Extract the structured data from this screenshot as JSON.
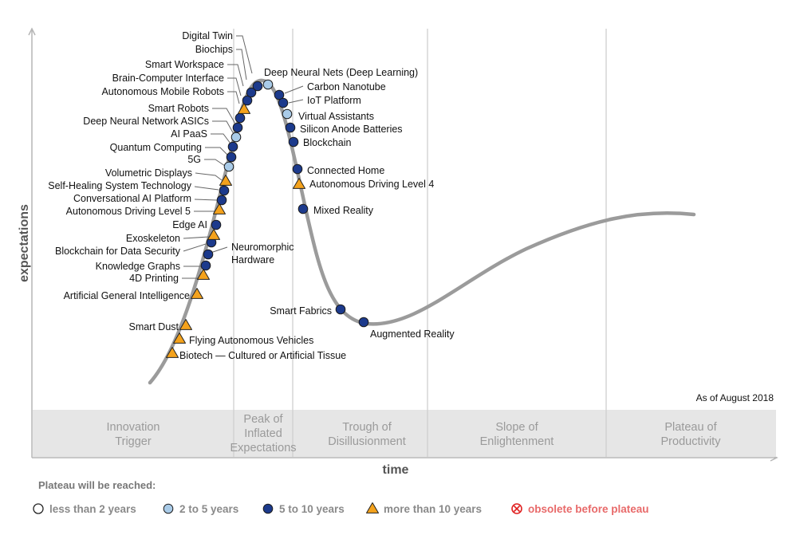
{
  "chart_data": {
    "type": "scatter",
    "subtype": "hype-cycle",
    "xlabel": "time",
    "ylabel": "expectations",
    "as_of": "As of August 2018",
    "phases": [
      {
        "name": "Innovation Trigger",
        "lines": [
          "Innovation",
          "Trigger"
        ]
      },
      {
        "name": "Peak of Inflated Expectations",
        "lines": [
          "Peak of",
          "Inflated",
          "Expectations"
        ]
      },
      {
        "name": "Trough of Disillusionment",
        "lines": [
          "Trough of",
          "Disillusionment"
        ]
      },
      {
        "name": "Slope of Enlightenment",
        "lines": [
          "Slope of",
          "Enlightenment"
        ]
      },
      {
        "name": "Plateau of Productivity",
        "lines": [
          "Plateau of",
          "Productivity"
        ]
      }
    ],
    "legend": {
      "title": "Plateau will be reached:",
      "items": [
        {
          "key": "lt2",
          "label": "less than 2 years",
          "marker": "open-circle"
        },
        {
          "key": "2to5",
          "label": "2 to 5 years",
          "marker": "light-blue-circle"
        },
        {
          "key": "5to10",
          "label": "5 to 10 years",
          "marker": "dark-blue-circle"
        },
        {
          "key": "gt10",
          "label": "more than 10 years",
          "marker": "orange-triangle"
        },
        {
          "key": "obsolete",
          "label": "obsolete before plateau",
          "marker": "red-crossed-circle"
        }
      ]
    },
    "colors": {
      "curve": "#9b9b9b",
      "phase_band": "#e6e6e6",
      "lt2": "#ffffff",
      "2to5": "#a9cbe8",
      "5to10": "#1c3a8c",
      "gt10": "#f4a21c",
      "obsolete": "#e02020"
    },
    "points": [
      {
        "name": "Biotech — Cultured or Artificial Tissue",
        "phase": "Innovation Trigger",
        "category": "gt10"
      },
      {
        "name": "Flying Autonomous Vehicles",
        "phase": "Innovation Trigger",
        "category": "gt10"
      },
      {
        "name": "Smart Dust",
        "phase": "Innovation Trigger",
        "category": "gt10"
      },
      {
        "name": "Artificial General Intelligence",
        "phase": "Innovation Trigger",
        "category": "gt10"
      },
      {
        "name": "4D Printing",
        "phase": "Innovation Trigger",
        "category": "gt10"
      },
      {
        "name": "Knowledge Graphs",
        "phase": "Innovation Trigger",
        "category": "5to10"
      },
      {
        "name": "Neuromorphic Hardware",
        "phase": "Innovation Trigger",
        "category": "5to10"
      },
      {
        "name": "Blockchain for Data Security",
        "phase": "Innovation Trigger",
        "category": "5to10"
      },
      {
        "name": "Exoskeleton",
        "phase": "Innovation Trigger",
        "category": "gt10"
      },
      {
        "name": "Edge AI",
        "phase": "Innovation Trigger",
        "category": "5to10"
      },
      {
        "name": "Autonomous Driving Level 5",
        "phase": "Innovation Trigger",
        "category": "gt10"
      },
      {
        "name": "Conversational AI Platform",
        "phase": "Innovation Trigger",
        "category": "5to10"
      },
      {
        "name": "Self-Healing System Technology",
        "phase": "Innovation Trigger",
        "category": "5to10"
      },
      {
        "name": "Volumetric Displays",
        "phase": "Innovation Trigger",
        "category": "gt10"
      },
      {
        "name": "5G",
        "phase": "Innovation Trigger",
        "category": "2to5"
      },
      {
        "name": "Quantum Computing",
        "phase": "Innovation Trigger",
        "category": "5to10"
      },
      {
        "name": "AI PaaS",
        "phase": "Peak of Inflated Expectations",
        "category": "5to10"
      },
      {
        "name": "Deep Neural Network ASICs",
        "phase": "Peak of Inflated Expectations",
        "category": "2to5"
      },
      {
        "name": "Smart Robots",
        "phase": "Peak of Inflated Expectations",
        "category": "5to10"
      },
      {
        "name": "Autonomous Mobile Robots",
        "phase": "Peak of Inflated Expectations",
        "category": "5to10"
      },
      {
        "name": "Brain-Computer Interface",
        "phase": "Peak of Inflated Expectations",
        "category": "gt10"
      },
      {
        "name": "Smart Workspace",
        "phase": "Peak of Inflated Expectations",
        "category": "5to10"
      },
      {
        "name": "Biochips",
        "phase": "Peak of Inflated Expectations",
        "category": "5to10"
      },
      {
        "name": "Digital Twin",
        "phase": "Peak of Inflated Expectations",
        "category": "5to10"
      },
      {
        "name": "Deep Neural Nets (Deep Learning)",
        "phase": "Peak of Inflated Expectations",
        "category": "2to5"
      },
      {
        "name": "Carbon Nanotube",
        "phase": "Peak of Inflated Expectations",
        "category": "5to10"
      },
      {
        "name": "IoT Platform",
        "phase": "Peak of Inflated Expectations",
        "category": "5to10"
      },
      {
        "name": "Virtual Assistants",
        "phase": "Peak of Inflated Expectations",
        "category": "2to5"
      },
      {
        "name": "Silicon Anode Batteries",
        "phase": "Trough of Disillusionment",
        "category": "5to10"
      },
      {
        "name": "Blockchain",
        "phase": "Trough of Disillusionment",
        "category": "5to10"
      },
      {
        "name": "Connected Home",
        "phase": "Trough of Disillusionment",
        "category": "5to10"
      },
      {
        "name": "Autonomous Driving Level 4",
        "phase": "Trough of Disillusionment",
        "category": "gt10"
      },
      {
        "name": "Mixed Reality",
        "phase": "Trough of Disillusionment",
        "category": "5to10"
      },
      {
        "name": "Smart Fabrics",
        "phase": "Trough of Disillusionment",
        "category": "5to10"
      },
      {
        "name": "Augmented Reality",
        "phase": "Trough of Disillusionment",
        "category": "5to10"
      }
    ]
  }
}
